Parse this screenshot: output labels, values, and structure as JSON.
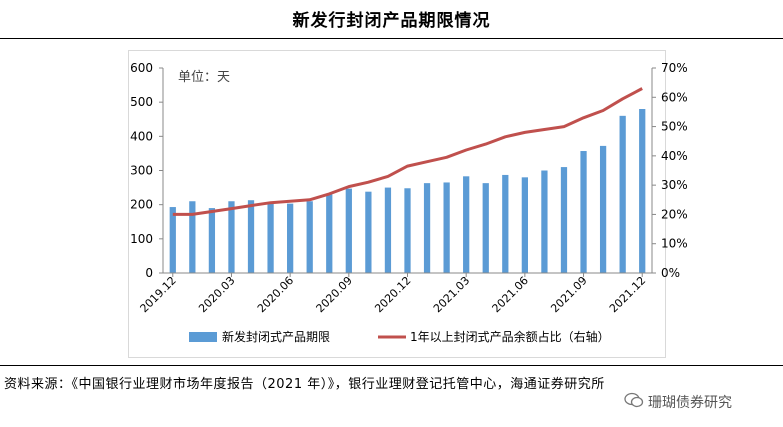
{
  "title": "新发行封闭产品期限情况",
  "source": "资料来源：《中国银行业理财市场年度报告（2021 年）》，银行业理财登记托管中心，海通证券研究所",
  "watermark": "珊瑚债券研究",
  "colors": {
    "bar": "#5b9bd5",
    "line": "#c0504d",
    "frame": "#d9d9d9"
  },
  "chart_data": {
    "type": "bar",
    "unit_label": "单位：天",
    "x": [
      "2019.12",
      "2020.01",
      "2020.02",
      "2020.03",
      "2020.04",
      "2020.05",
      "2020.06",
      "2020.07",
      "2020.08",
      "2020.09",
      "2020.10",
      "2020.11",
      "2020.12",
      "2021.01",
      "2021.02",
      "2021.03",
      "2021.04",
      "2021.05",
      "2021.06",
      "2021.07",
      "2021.08",
      "2021.09",
      "2021.10",
      "2021.11",
      "2021.12"
    ],
    "x_tick_labels": [
      "2019.12",
      "2020.03",
      "2020.06",
      "2020.09",
      "2020.12",
      "2021.03",
      "2021.06",
      "2021.09",
      "2021.12"
    ],
    "x_tick_indices": [
      0,
      3,
      6,
      9,
      12,
      15,
      18,
      21,
      24
    ],
    "series": [
      {
        "name": "新发封闭式产品期限",
        "type": "bar",
        "axis": "left",
        "values": [
          193,
          210,
          190,
          210,
          213,
          203,
          203,
          210,
          230,
          247,
          238,
          250,
          248,
          263,
          265,
          283,
          263,
          287,
          280,
          300,
          310,
          357,
          372,
          460,
          480
        ]
      },
      {
        "name": "1年以上封闭式产品余额占比（右轴）",
        "type": "line",
        "axis": "right",
        "values": [
          0.2,
          0.2,
          0.21,
          0.22,
          0.23,
          0.24,
          0.245,
          0.25,
          0.27,
          0.295,
          0.31,
          0.33,
          0.365,
          0.38,
          0.395,
          0.42,
          0.44,
          0.465,
          0.48,
          0.49,
          0.5,
          0.53,
          0.555,
          0.595,
          0.63
        ]
      }
    ],
    "ylim": [
      0,
      600
    ],
    "y_ticks": [
      "0",
      "100",
      "200",
      "300",
      "400",
      "500",
      "600"
    ],
    "y2lim": [
      0,
      0.7
    ],
    "y2_ticks": [
      "0%",
      "10%",
      "20%",
      "30%",
      "40%",
      "50%",
      "60%",
      "70%"
    ],
    "legend_position": "bottom"
  }
}
